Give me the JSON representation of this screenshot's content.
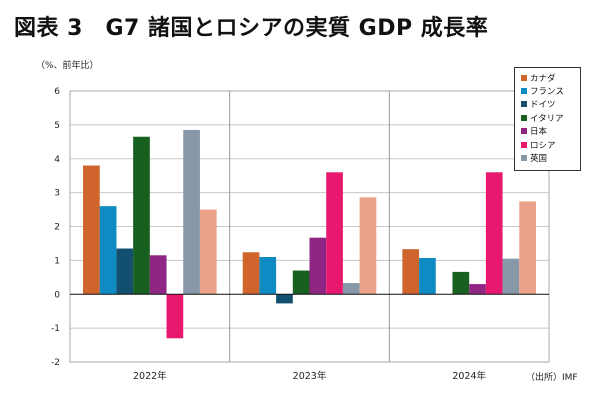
{
  "title": "図表 3　G7 諸国とロシアの実質 GDP 成長率",
  "unit_label": "（%、前年比）",
  "source": "（出所）IMF",
  "chart_data": {
    "type": "bar",
    "title": "図表 3　G7 諸国とロシアの実質 GDP 成長率",
    "ylabel": "（%、前年比）",
    "ylim": [
      -2,
      6
    ],
    "yticks": [
      "-2",
      "-1",
      "0",
      "1",
      "2",
      "3",
      "4",
      "5",
      "6"
    ],
    "grid": true,
    "legend_placement": "top-right",
    "categories": [
      "2022年",
      "2023年",
      "2024年"
    ],
    "series": [
      {
        "name": "カナダ",
        "color": "#cf642c",
        "values": [
          3.8,
          1.24,
          1.33
        ]
      },
      {
        "name": "フランス",
        "color": "#0e8bc2",
        "values": [
          2.6,
          1.1,
          1.07
        ]
      },
      {
        "name": "ドイツ",
        "color": "#13506f",
        "values": [
          1.35,
          -0.27,
          0
        ]
      },
      {
        "name": "イタリア",
        "color": "#17601f",
        "values": [
          4.65,
          0.7,
          0.66
        ]
      },
      {
        "name": "日本",
        "color": "#8f2683",
        "values": [
          1.15,
          1.67,
          0.3
        ]
      },
      {
        "name": "ロシア",
        "color": "#e8186f",
        "values": [
          -1.3,
          3.6,
          3.6
        ]
      },
      {
        "name": "英国",
        "color": "#8799a9",
        "values": [
          4.85,
          0.33,
          1.05
        ]
      },
      {
        "name": "",
        "color": "#eca28a",
        "values": [
          2.5,
          2.86,
          2.74
        ]
      }
    ]
  }
}
